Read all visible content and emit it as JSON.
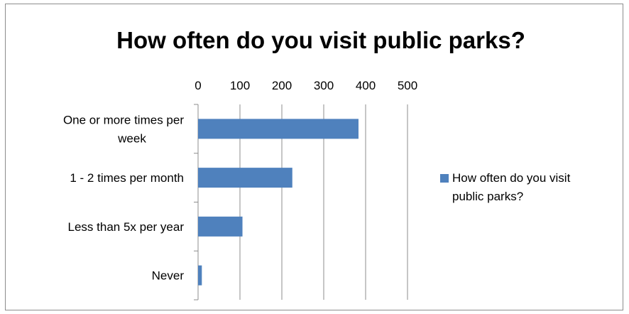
{
  "chart_data": {
    "type": "bar",
    "orientation": "horizontal",
    "title": "How often do you visit public parks?",
    "categories": [
      "One or more times per week",
      "1 - 2 times per month",
      "Less than 5x per year",
      "Never"
    ],
    "series": [
      {
        "name": "How often do you visit public parks?",
        "values": [
          383,
          225,
          106,
          9
        ],
        "color": "#4f81bd"
      }
    ],
    "xlim": [
      0,
      500
    ],
    "xticks": [
      "0",
      "100",
      "200",
      "300",
      "400",
      "500"
    ],
    "x_axis_position": "top",
    "grid": true,
    "legend_position": "right"
  }
}
